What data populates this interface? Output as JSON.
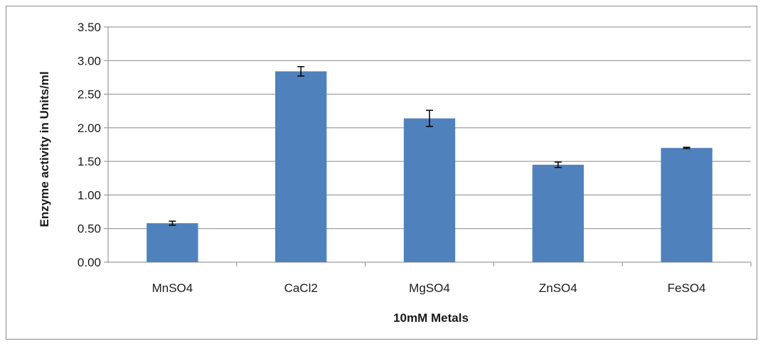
{
  "chart_data": {
    "type": "bar",
    "categories": [
      "MnSO4",
      "CaCl2",
      "MgSO4",
      "ZnSO4",
      "FeSO4"
    ],
    "values": [
      0.58,
      2.84,
      2.14,
      1.45,
      1.7
    ],
    "errors": [
      0.03,
      0.07,
      0.12,
      0.04,
      0.01
    ],
    "xlabel": "10mM   Metals",
    "ylabel": "Enzyme activity in Units/ml",
    "ylim": [
      0,
      3.5
    ],
    "yticks": [
      "0.00",
      "0.50",
      "1.00",
      "1.50",
      "2.00",
      "2.50",
      "3.00",
      "3.50"
    ],
    "grid": true,
    "legend": "none",
    "colors": {
      "bar": "#4f81bd",
      "grid": "#868686",
      "axis": "#868686",
      "error_bar": "#000000"
    }
  }
}
